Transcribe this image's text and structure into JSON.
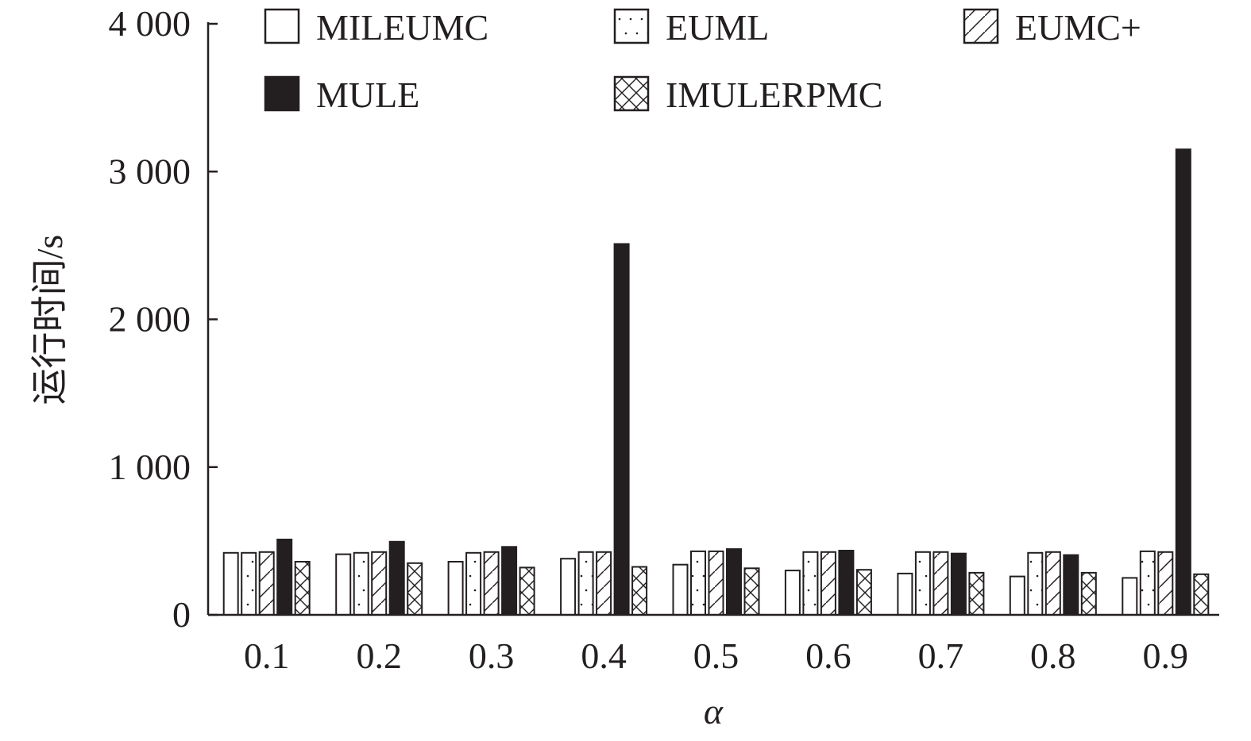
{
  "chart_data": {
    "type": "bar",
    "xlabel": "α",
    "ylabel": "运行时间/s",
    "ylim": [
      0,
      4000
    ],
    "yticks": [
      0,
      1000,
      2000,
      3000,
      4000
    ],
    "ytick_labels": [
      "0",
      "1 000",
      "2 000",
      "3 000",
      "4 000"
    ],
    "categories": [
      "0.1",
      "0.2",
      "0.3",
      "0.4",
      "0.5",
      "0.6",
      "0.7",
      "0.8",
      "0.9"
    ],
    "legend_position": "top",
    "series": [
      {
        "name": "MILEUMC",
        "pattern": "none",
        "values": [
          420,
          410,
          360,
          380,
          340,
          300,
          280,
          260,
          250
        ]
      },
      {
        "name": "EUML",
        "pattern": "dots",
        "values": [
          420,
          420,
          420,
          425,
          430,
          425,
          425,
          420,
          430
        ]
      },
      {
        "name": "EUMC+",
        "pattern": "diagonal",
        "values": [
          425,
          425,
          425,
          425,
          430,
          425,
          425,
          425,
          425
        ]
      },
      {
        "name": "MULE",
        "pattern": "solid",
        "values": [
          510,
          495,
          460,
          2510,
          445,
          435,
          415,
          405,
          3150
        ]
      },
      {
        "name": "IMULERPMC",
        "pattern": "cross",
        "values": [
          360,
          350,
          320,
          325,
          315,
          305,
          285,
          285,
          275
        ]
      }
    ],
    "colors": {
      "ink": "#231f20",
      "background": "#ffffff"
    }
  }
}
